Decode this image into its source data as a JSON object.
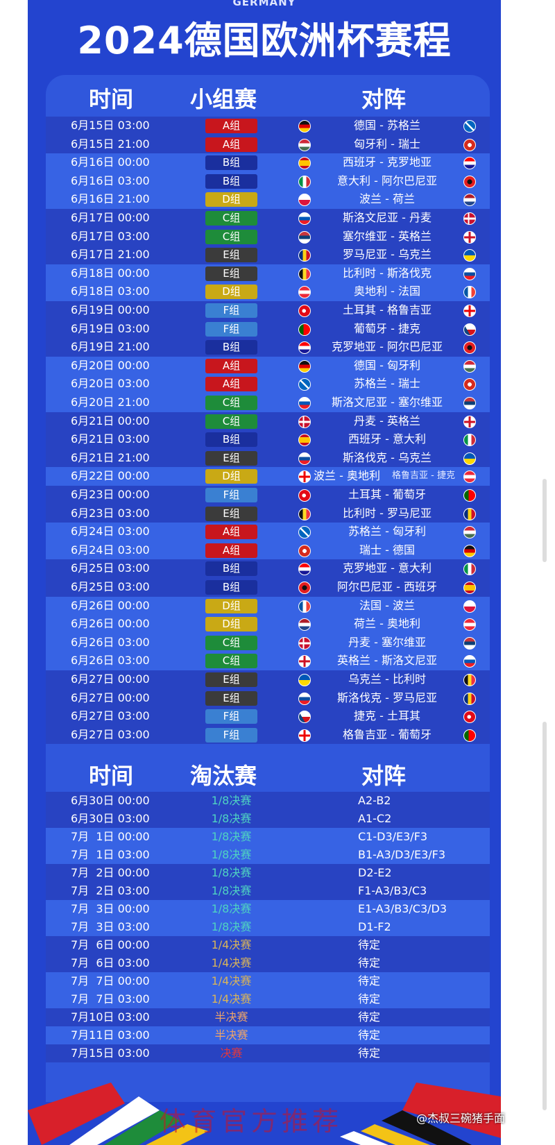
{
  "header": {
    "subtitle": "GERMANY",
    "title": "2024德国欧洲杯赛程"
  },
  "group_stage": {
    "headers": {
      "time": "时间",
      "stage": "小组赛",
      "match": "对阵"
    },
    "group_colors": {
      "A组": "#c8161d",
      "B组": "#1a2f9e",
      "C组": "#1e8c3a",
      "D组": "#c9a915",
      "E组": "#3b3b3b",
      "F组": "#3a80d2"
    },
    "rows": [
      {
        "time": "6月15日 03:00",
        "group": "A组",
        "match": "德国 - 苏格兰",
        "home_flag": "de",
        "away_flag": "sco"
      },
      {
        "time": "6月15日 21:00",
        "group": "A组",
        "match": "匈牙利 - 瑞士",
        "home_flag": "hu",
        "away_flag": "ch"
      },
      {
        "time": "6月16日 00:00",
        "group": "B组",
        "match": "西班牙 - 克罗地亚",
        "home_flag": "es",
        "away_flag": "hr"
      },
      {
        "time": "6月16日 03:00",
        "group": "B组",
        "match": "意大利 - 阿尔巴尼亚",
        "home_flag": "it",
        "away_flag": "al"
      },
      {
        "time": "6月16日 21:00",
        "group": "D组",
        "match": "波兰 - 荷兰",
        "home_flag": "pl",
        "away_flag": "nl"
      },
      {
        "time": "6月17日 00:00",
        "group": "C组",
        "match": "斯洛文尼亚 - 丹麦",
        "home_flag": "si",
        "away_flag": "dk"
      },
      {
        "time": "6月17日 03:00",
        "group": "C组",
        "match": "塞尔维亚 - 英格兰",
        "home_flag": "rs",
        "away_flag": "eng"
      },
      {
        "time": "6月17日 21:00",
        "group": "E组",
        "match": "罗马尼亚 - 乌克兰",
        "home_flag": "ro",
        "away_flag": "ua"
      },
      {
        "time": "6月18日 00:00",
        "group": "E组",
        "match": "比利时 - 斯洛伐克",
        "home_flag": "be",
        "away_flag": "sk"
      },
      {
        "time": "6月18日 03:00",
        "group": "D组",
        "match": "奥地利 - 法国",
        "home_flag": "at",
        "away_flag": "fr"
      },
      {
        "time": "6月19日 00:00",
        "group": "F组",
        "match": "土耳其 - 格鲁吉亚",
        "home_flag": "tr",
        "away_flag": "ge"
      },
      {
        "time": "6月19日 03:00",
        "group": "F组",
        "match": "葡萄牙 - 捷克",
        "home_flag": "pt",
        "away_flag": "cz"
      },
      {
        "time": "6月19日 21:00",
        "group": "B组",
        "match": "克罗地亚 - 阿尔巴尼亚",
        "home_flag": "hr",
        "away_flag": "al"
      },
      {
        "time": "6月20日 00:00",
        "group": "A组",
        "match": "德国 - 匈牙利",
        "home_flag": "de",
        "away_flag": "hu"
      },
      {
        "time": "6月20日 03:00",
        "group": "A组",
        "match": "苏格兰 - 瑞士",
        "home_flag": "sco",
        "away_flag": "ch"
      },
      {
        "time": "6月20日 21:00",
        "group": "C组",
        "match": "斯洛文尼亚 - 塞尔维亚",
        "home_flag": "si",
        "away_flag": "rs"
      },
      {
        "time": "6月21日 00:00",
        "group": "C组",
        "match": "丹麦 - 英格兰",
        "home_flag": "dk",
        "away_flag": "eng"
      },
      {
        "time": "6月21日 03:00",
        "group": "B组",
        "match": "西班牙 - 意大利",
        "home_flag": "es",
        "away_flag": "it"
      },
      {
        "time": "6月21日 21:00",
        "group": "E组",
        "match": "斯洛伐克 - 乌克兰",
        "home_flag": "sk",
        "away_flag": "ua"
      },
      {
        "time": "6月22日 00:00",
        "group": "D组",
        "match": "波兰 - 奥地利",
        "overlay": "格鲁吉亚 - 捷克",
        "home_flag": "ge",
        "away_flag": "at"
      },
      {
        "time": "6月23日 00:00",
        "group": "F组",
        "match": "土耳其 - 葡萄牙",
        "home_flag": "tr",
        "away_flag": "pt"
      },
      {
        "time": "6月23日 03:00",
        "group": "E组",
        "match": "比利时 - 罗马尼亚",
        "home_flag": "be",
        "away_flag": "ro"
      },
      {
        "time": "6月24日 03:00",
        "group": "A组",
        "match": "苏格兰 - 匈牙利",
        "home_flag": "sco",
        "away_flag": "hu"
      },
      {
        "time": "6月24日 03:00",
        "group": "A组",
        "match": "瑞士 - 德国",
        "home_flag": "ch",
        "away_flag": "de"
      },
      {
        "time": "6月25日 03:00",
        "group": "B组",
        "match": "克罗地亚 - 意大利",
        "home_flag": "hr",
        "away_flag": "it"
      },
      {
        "time": "6月25日 03:00",
        "group": "B组",
        "match": "阿尔巴尼亚 - 西班牙",
        "home_flag": "al",
        "away_flag": "es"
      },
      {
        "time": "6月26日 00:00",
        "group": "D组",
        "match": "法国 - 波兰",
        "home_flag": "fr",
        "away_flag": "pl"
      },
      {
        "time": "6月26日 00:00",
        "group": "D组",
        "match": "荷兰 - 奥地利",
        "home_flag": "nl",
        "away_flag": "at"
      },
      {
        "time": "6月26日 03:00",
        "group": "C组",
        "match": "丹麦 - 塞尔维亚",
        "home_flag": "dk",
        "away_flag": "rs"
      },
      {
        "time": "6月26日 03:00",
        "group": "C组",
        "match": "英格兰 - 斯洛文尼亚",
        "home_flag": "eng",
        "away_flag": "si"
      },
      {
        "time": "6月27日 00:00",
        "group": "E组",
        "match": "乌克兰 - 比利时",
        "home_flag": "ua",
        "away_flag": "be"
      },
      {
        "time": "6月27日 00:00",
        "group": "E组",
        "match": "斯洛伐克 - 罗马尼亚",
        "home_flag": "sk",
        "away_flag": "ro"
      },
      {
        "time": "6月27日 03:00",
        "group": "F组",
        "match": "捷克 - 土耳其",
        "home_flag": "cz",
        "away_flag": "tr"
      },
      {
        "time": "6月27日 03:00",
        "group": "F组",
        "match": "格鲁吉亚 - 葡萄牙",
        "home_flag": "ge",
        "away_flag": "pt"
      }
    ]
  },
  "knockout": {
    "headers": {
      "time": "时间",
      "stage": "淘汰赛",
      "match": "对阵"
    },
    "stage_colors": {
      "1/8决赛": "#4fd3c2",
      "1/4决赛": "#d9b45a",
      "半决赛": "#eda46a",
      "决赛": "#e2383e"
    },
    "rows": [
      {
        "time": "6月30日 00:00",
        "stage": "1/8决赛",
        "match": "A2-B2"
      },
      {
        "time": "6月30日 03:00",
        "stage": "1/8决赛",
        "match": "A1-C2"
      },
      {
        "time": "7月  1日 00:00",
        "stage": "1/8决赛",
        "match": "C1-D3/E3/F3"
      },
      {
        "time": "7月  1日 03:00",
        "stage": "1/8决赛",
        "match": "B1-A3/D3/E3/F3"
      },
      {
        "time": "7月  2日 00:00",
        "stage": "1/8决赛",
        "match": "D2-E2"
      },
      {
        "time": "7月  2日 03:00",
        "stage": "1/8决赛",
        "match": "F1-A3/B3/C3"
      },
      {
        "time": "7月  3日 00:00",
        "stage": "1/8决赛",
        "match": "E1-A3/B3/C3/D3"
      },
      {
        "time": "7月  3日 03:00",
        "stage": "1/8决赛",
        "match": "D1-F2"
      },
      {
        "time": "7月  6日 00:00",
        "stage": "1/4决赛",
        "match": "待定"
      },
      {
        "time": "7月  6日 03:00",
        "stage": "1/4决赛",
        "match": "待定"
      },
      {
        "time": "7月  7日 00:00",
        "stage": "1/4决赛",
        "match": "待定"
      },
      {
        "time": "7月  7日 03:00",
        "stage": "1/4决赛",
        "match": "待定"
      },
      {
        "time": "7月10日 03:00",
        "stage": "半决赛",
        "match": "待定"
      },
      {
        "time": "7月11日 03:00",
        "stage": "半决赛",
        "match": "待定"
      },
      {
        "time": "7月15日 03:00",
        "stage": "决赛",
        "match": "待定"
      }
    ]
  },
  "footer": {
    "watermark": "体育官方推荐",
    "credit": "@杰叔三碗猪手面"
  }
}
